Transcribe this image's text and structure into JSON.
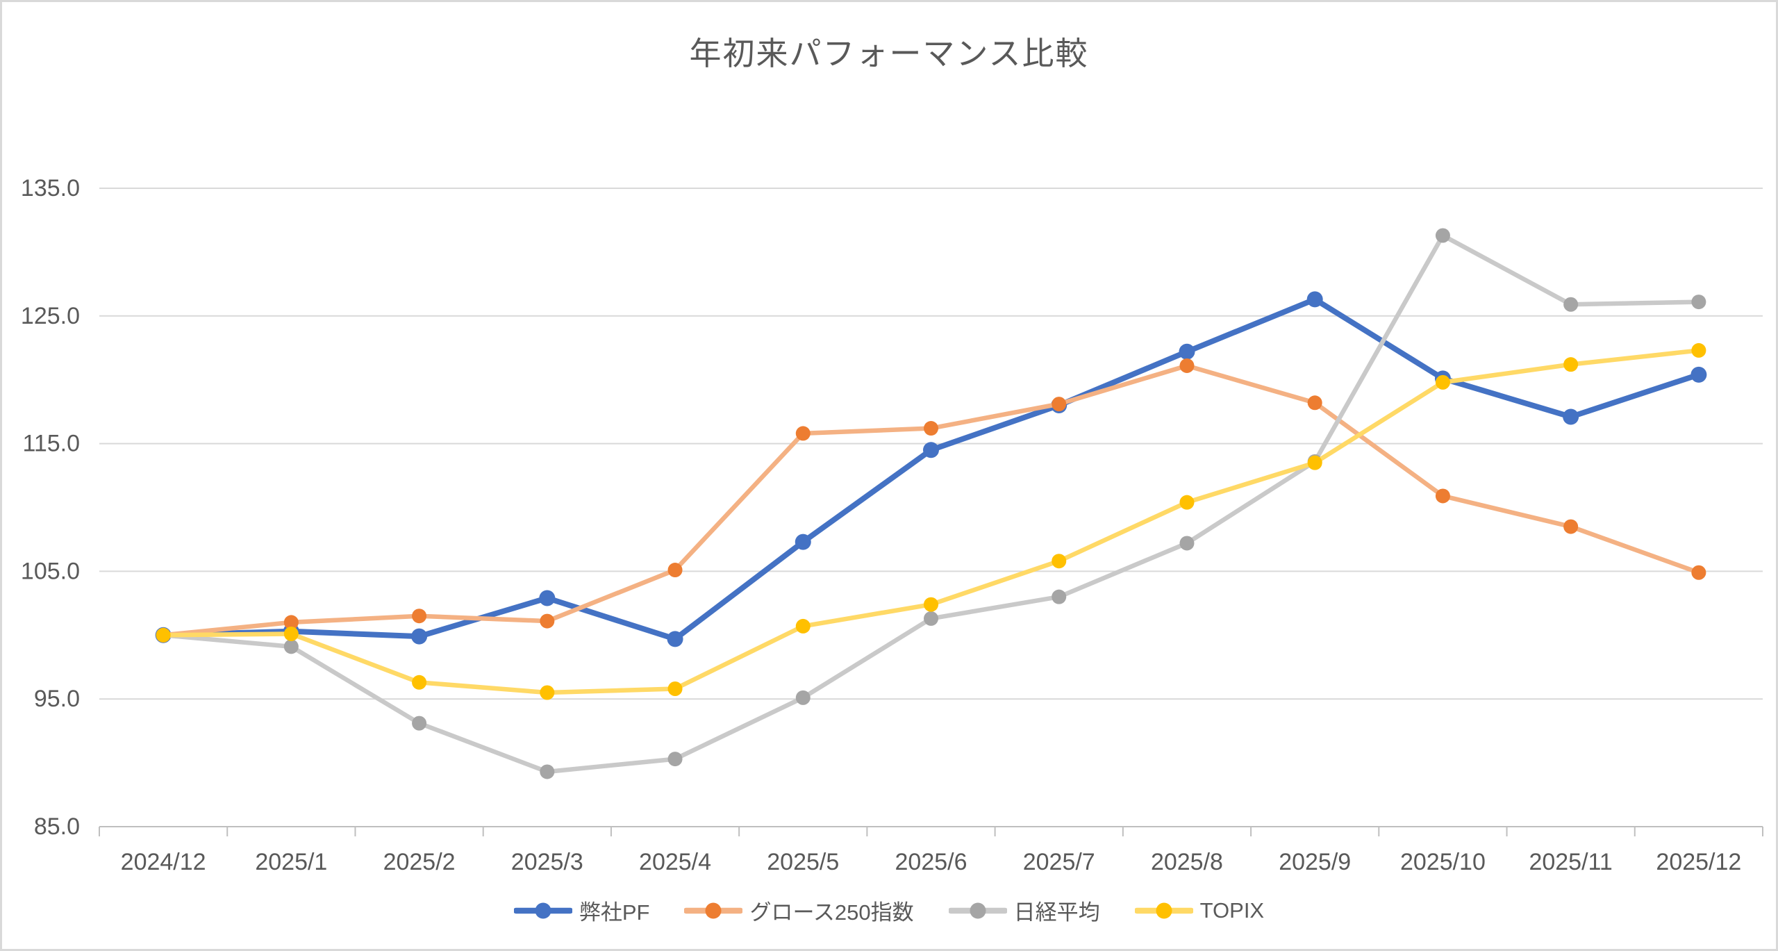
{
  "title": "年初来パフォーマンス比較",
  "palette": {
    "background": "#FFFFFF",
    "frame_border": "#D9D9D9",
    "gridline": "#D9D9D9",
    "axis_line": "#BFBFBF",
    "axis_text": "#595959",
    "title_text": "#595959",
    "legend_text": "#595959"
  },
  "chart_data": {
    "type": "line",
    "title": "年初来パフォーマンス比較",
    "xlabel": "",
    "ylabel": "",
    "ylim": [
      85,
      135
    ],
    "ytick_step": 10,
    "ytick_labels": [
      "85.0",
      "95.0",
      "105.0",
      "115.0",
      "125.0",
      "135.0"
    ],
    "grid": true,
    "legend_position": "bottom",
    "categories": [
      "2024/12",
      "2025/1",
      "2025/2",
      "2025/3",
      "2025/4",
      "2025/5",
      "2025/6",
      "2025/7",
      "2025/8",
      "2025/9",
      "2025/10",
      "2025/11",
      "2025/12"
    ],
    "series": [
      {
        "name": "弊社PF",
        "marker_color": "#4472C4",
        "line_color": "#4472C4",
        "line_width": 8,
        "marker_radius": 11.5,
        "values": [
          100.0,
          100.3,
          99.9,
          102.9,
          99.7,
          107.3,
          114.5,
          118.0,
          122.2,
          126.3,
          120.1,
          117.1,
          120.4
        ]
      },
      {
        "name": "グロース250指数",
        "marker_color": "#ED7D31",
        "line_color": "#F4B183",
        "line_width": 6.5,
        "marker_radius": 10.5,
        "values": [
          100.0,
          101.0,
          101.5,
          101.1,
          105.1,
          115.8,
          116.2,
          118.1,
          121.1,
          118.2,
          110.9,
          108.5,
          104.9
        ]
      },
      {
        "name": "日経平均",
        "marker_color": "#A5A5A5",
        "line_color": "#C9C9C9",
        "line_width": 6.5,
        "marker_radius": 10.5,
        "values": [
          100.0,
          99.1,
          93.1,
          89.3,
          90.3,
          95.1,
          101.3,
          103.0,
          107.2,
          113.6,
          131.3,
          125.9,
          126.1
        ]
      },
      {
        "name": "TOPIX",
        "marker_color": "#FFC000",
        "line_color": "#FFD966",
        "line_width": 6.5,
        "marker_radius": 10.5,
        "values": [
          100.0,
          100.1,
          96.3,
          95.5,
          95.8,
          100.7,
          102.4,
          105.8,
          110.4,
          113.5,
          119.8,
          121.2,
          122.3
        ]
      }
    ]
  }
}
